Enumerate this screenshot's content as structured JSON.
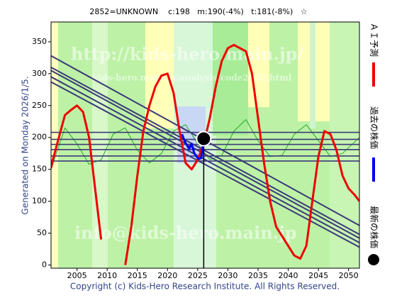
{
  "chart_data": {
    "type": "line",
    "title": "2852=UNKNOWN    c:198   m:190(-4%)   t:181(-8%)   ☆",
    "side_text": "Generated on Monday 2026/1/5.",
    "footer": "Copyright (c) Kids-Hero Research Institute. All Rights Reserved.",
    "watermarks": [
      "http://kids-hero.main.jp/",
      "kids-hero.main.jp/analysis/code2852.html",
      "info@kids-hero.main.jp"
    ],
    "xlim": [
      2000.7,
      2051.8
    ],
    "ylim": [
      -5,
      381
    ],
    "xticks": [
      2005,
      2010,
      2015,
      2020,
      2025,
      2030,
      2035,
      2040,
      2045,
      2050
    ],
    "yticks": [
      0,
      50,
      100,
      150,
      200,
      250,
      300,
      350
    ],
    "series": [
      {
        "name": "ＡＩ予測",
        "color": "#ee0000",
        "x": [
          2000.7,
          2001,
          2002,
          2003,
          2004,
          2005,
          2006,
          2007,
          2008,
          2009,
          2010,
          2011,
          2012,
          2013,
          2014,
          2015,
          2016,
          2017,
          2018,
          2019,
          2020,
          2021,
          2022,
          2023,
          2024,
          2025,
          2026,
          2027,
          2028,
          2029,
          2030,
          2031,
          2032,
          2033,
          2034,
          2035,
          2036,
          2037,
          2038,
          2039,
          2040,
          2041,
          2042,
          2043,
          2044,
          2045,
          2046,
          2047,
          2048,
          2049,
          2050,
          2051,
          2051.8
        ],
        "values": [
          152,
          165,
          200,
          235,
          243,
          250,
          240,
          200,
          120,
          40,
          null,
          null,
          null,
          0,
          60,
          140,
          210,
          250,
          280,
          297,
          300,
          270,
          210,
          160,
          150,
          165,
          190,
          230,
          280,
          320,
          340,
          345,
          340,
          335,
          300,
          230,
          160,
          100,
          60,
          45,
          30,
          15,
          10,
          30,
          100,
          170,
          210,
          205,
          180,
          140,
          120,
          110,
          100
        ]
      },
      {
        "name": "過去の株価",
        "color": "#0000ee",
        "x": [
          2022.4,
          2022.8,
          2023.2,
          2023.6,
          2024,
          2024.4,
          2024.8,
          2025.2,
          2025.6,
          2026
        ],
        "values": [
          205,
          195,
          188,
          182,
          190,
          176,
          170,
          166,
          168,
          198
        ]
      },
      {
        "name": "最新の株価",
        "color": "#000000",
        "marker": "dot",
        "x": [
          2026
        ],
        "values": [
          198
        ]
      }
    ],
    "trend_lines": [
      {
        "x": [
          2000.7,
          2051.8
        ],
        "values": [
          328,
          62
        ]
      },
      {
        "x": [
          2000.7,
          2051.8
        ],
        "values": [
          310,
          48
        ]
      },
      {
        "x": [
          2000.7,
          2051.8
        ],
        "values": [
          305,
          42
        ]
      },
      {
        "x": [
          2000.7,
          2051.8
        ],
        "values": [
          295,
          35
        ]
      },
      {
        "x": [
          2000.7,
          2051.8
        ],
        "values": [
          287,
          28
        ]
      }
    ],
    "levels": [
      208,
      197,
      189,
      181,
      171,
      163
    ],
    "cycle_line": {
      "color": "#22aa22",
      "x": [
        2000.7,
        2003,
        2005,
        2007,
        2009,
        2011,
        2013,
        2015,
        2017,
        2019,
        2021,
        2023,
        2025,
        2027,
        2029,
        2031,
        2033,
        2035,
        2037,
        2039,
        2041,
        2043,
        2045,
        2047,
        2049,
        2051.8
      ],
      "values": [
        150,
        215,
        190,
        158,
        165,
        205,
        215,
        180,
        160,
        175,
        210,
        220,
        190,
        165,
        172,
        210,
        228,
        195,
        170,
        172,
        205,
        220,
        195,
        170,
        175,
        200
      ]
    }
  }
}
